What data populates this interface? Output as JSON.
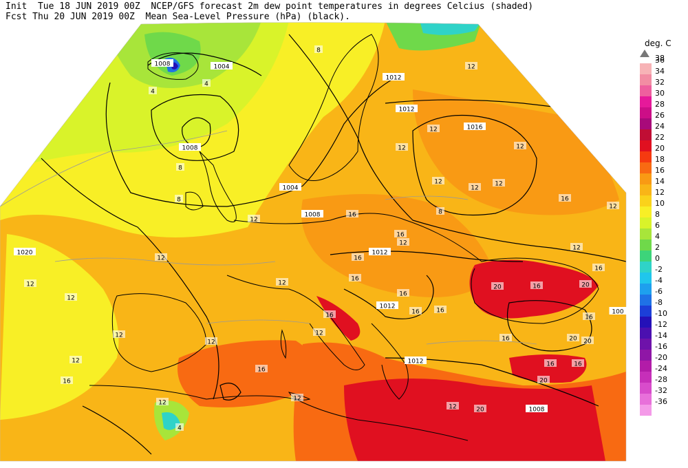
{
  "header": {
    "init_label": "Init",
    "init_time": "Tue 18 JUN 2019 00Z",
    "fcst_label": "Fcst",
    "fcst_time": "Thu 20 JUN 2019 00Z",
    "title_line1": "NCEP/GFS forecast 2m dew point temperatures in degrees Celcius (shaded)",
    "title_line2": "Mean Sea-Level Pressure (hPa) (black)."
  },
  "legend": {
    "title": "deg. C",
    "top_value": "38",
    "entries": [
      {
        "value": "36",
        "color": "#f7b3b6"
      },
      {
        "value": "34",
        "color": "#f28da3"
      },
      {
        "value": "32",
        "color": "#ee5f9e"
      },
      {
        "value": "30",
        "color": "#e6199a"
      },
      {
        "value": "28",
        "color": "#cc0e87"
      },
      {
        "value": "26",
        "color": "#a80a7a"
      },
      {
        "value": "24",
        "color": "#c00e34"
      },
      {
        "value": "22",
        "color": "#e01020"
      },
      {
        "value": "20",
        "color": "#f53a10"
      },
      {
        "value": "18",
        "color": "#f86a12"
      },
      {
        "value": "16",
        "color": "#f99a14"
      },
      {
        "value": "14",
        "color": "#f9b517"
      },
      {
        "value": "12",
        "color": "#fad21b"
      },
      {
        "value": "10",
        "color": "#f8ef26"
      },
      {
        "value": "8",
        "color": "#d9f32a"
      },
      {
        "value": "6",
        "color": "#a8e53a"
      },
      {
        "value": "4",
        "color": "#6fd94a"
      },
      {
        "value": "2",
        "color": "#3dd47a"
      },
      {
        "value": "0",
        "color": "#2fd3c8"
      },
      {
        "value": "-2",
        "color": "#20c6ec"
      },
      {
        "value": "-4",
        "color": "#1ea0ee"
      },
      {
        "value": "-6",
        "color": "#1f72e6"
      },
      {
        "value": "-8",
        "color": "#1c3fd8"
      },
      {
        "value": "-10",
        "color": "#2411b8"
      },
      {
        "value": "-12",
        "color": "#4b10b0"
      },
      {
        "value": "-14",
        "color": "#6e12aa"
      },
      {
        "value": "-16",
        "color": "#8f16a6"
      },
      {
        "value": "-20",
        "color": "#b21ca8"
      },
      {
        "value": "-24",
        "color": "#c62fb9"
      },
      {
        "value": "-28",
        "color": "#d84ccb"
      },
      {
        "value": "-32",
        "color": "#e870da"
      },
      {
        "value": "-36",
        "color": "#f49ae8"
      }
    ]
  },
  "isobar_labels": [
    "1008",
    "1004",
    "1012",
    "1012",
    "1016",
    "1008",
    "1004",
    "1008",
    "1020",
    "1012",
    "1012",
    "1012",
    "1008",
    "100"
  ],
  "dewpoint_labels": [
    "4",
    "8",
    "4",
    "8",
    "8",
    "12",
    "12",
    "12",
    "12",
    "16",
    "16",
    "16",
    "12",
    "12",
    "12",
    "12",
    "16",
    "12",
    "12",
    "12",
    "12",
    "16",
    "16",
    "16",
    "12",
    "16",
    "16",
    "20",
    "20",
    "16",
    "12",
    "16",
    "20",
    "16",
    "16",
    "20",
    "12",
    "12",
    "16",
    "12",
    "4",
    "12",
    "12",
    "8",
    "12",
    "20",
    "20",
    "16",
    "16",
    "16",
    "12",
    "12"
  ]
}
